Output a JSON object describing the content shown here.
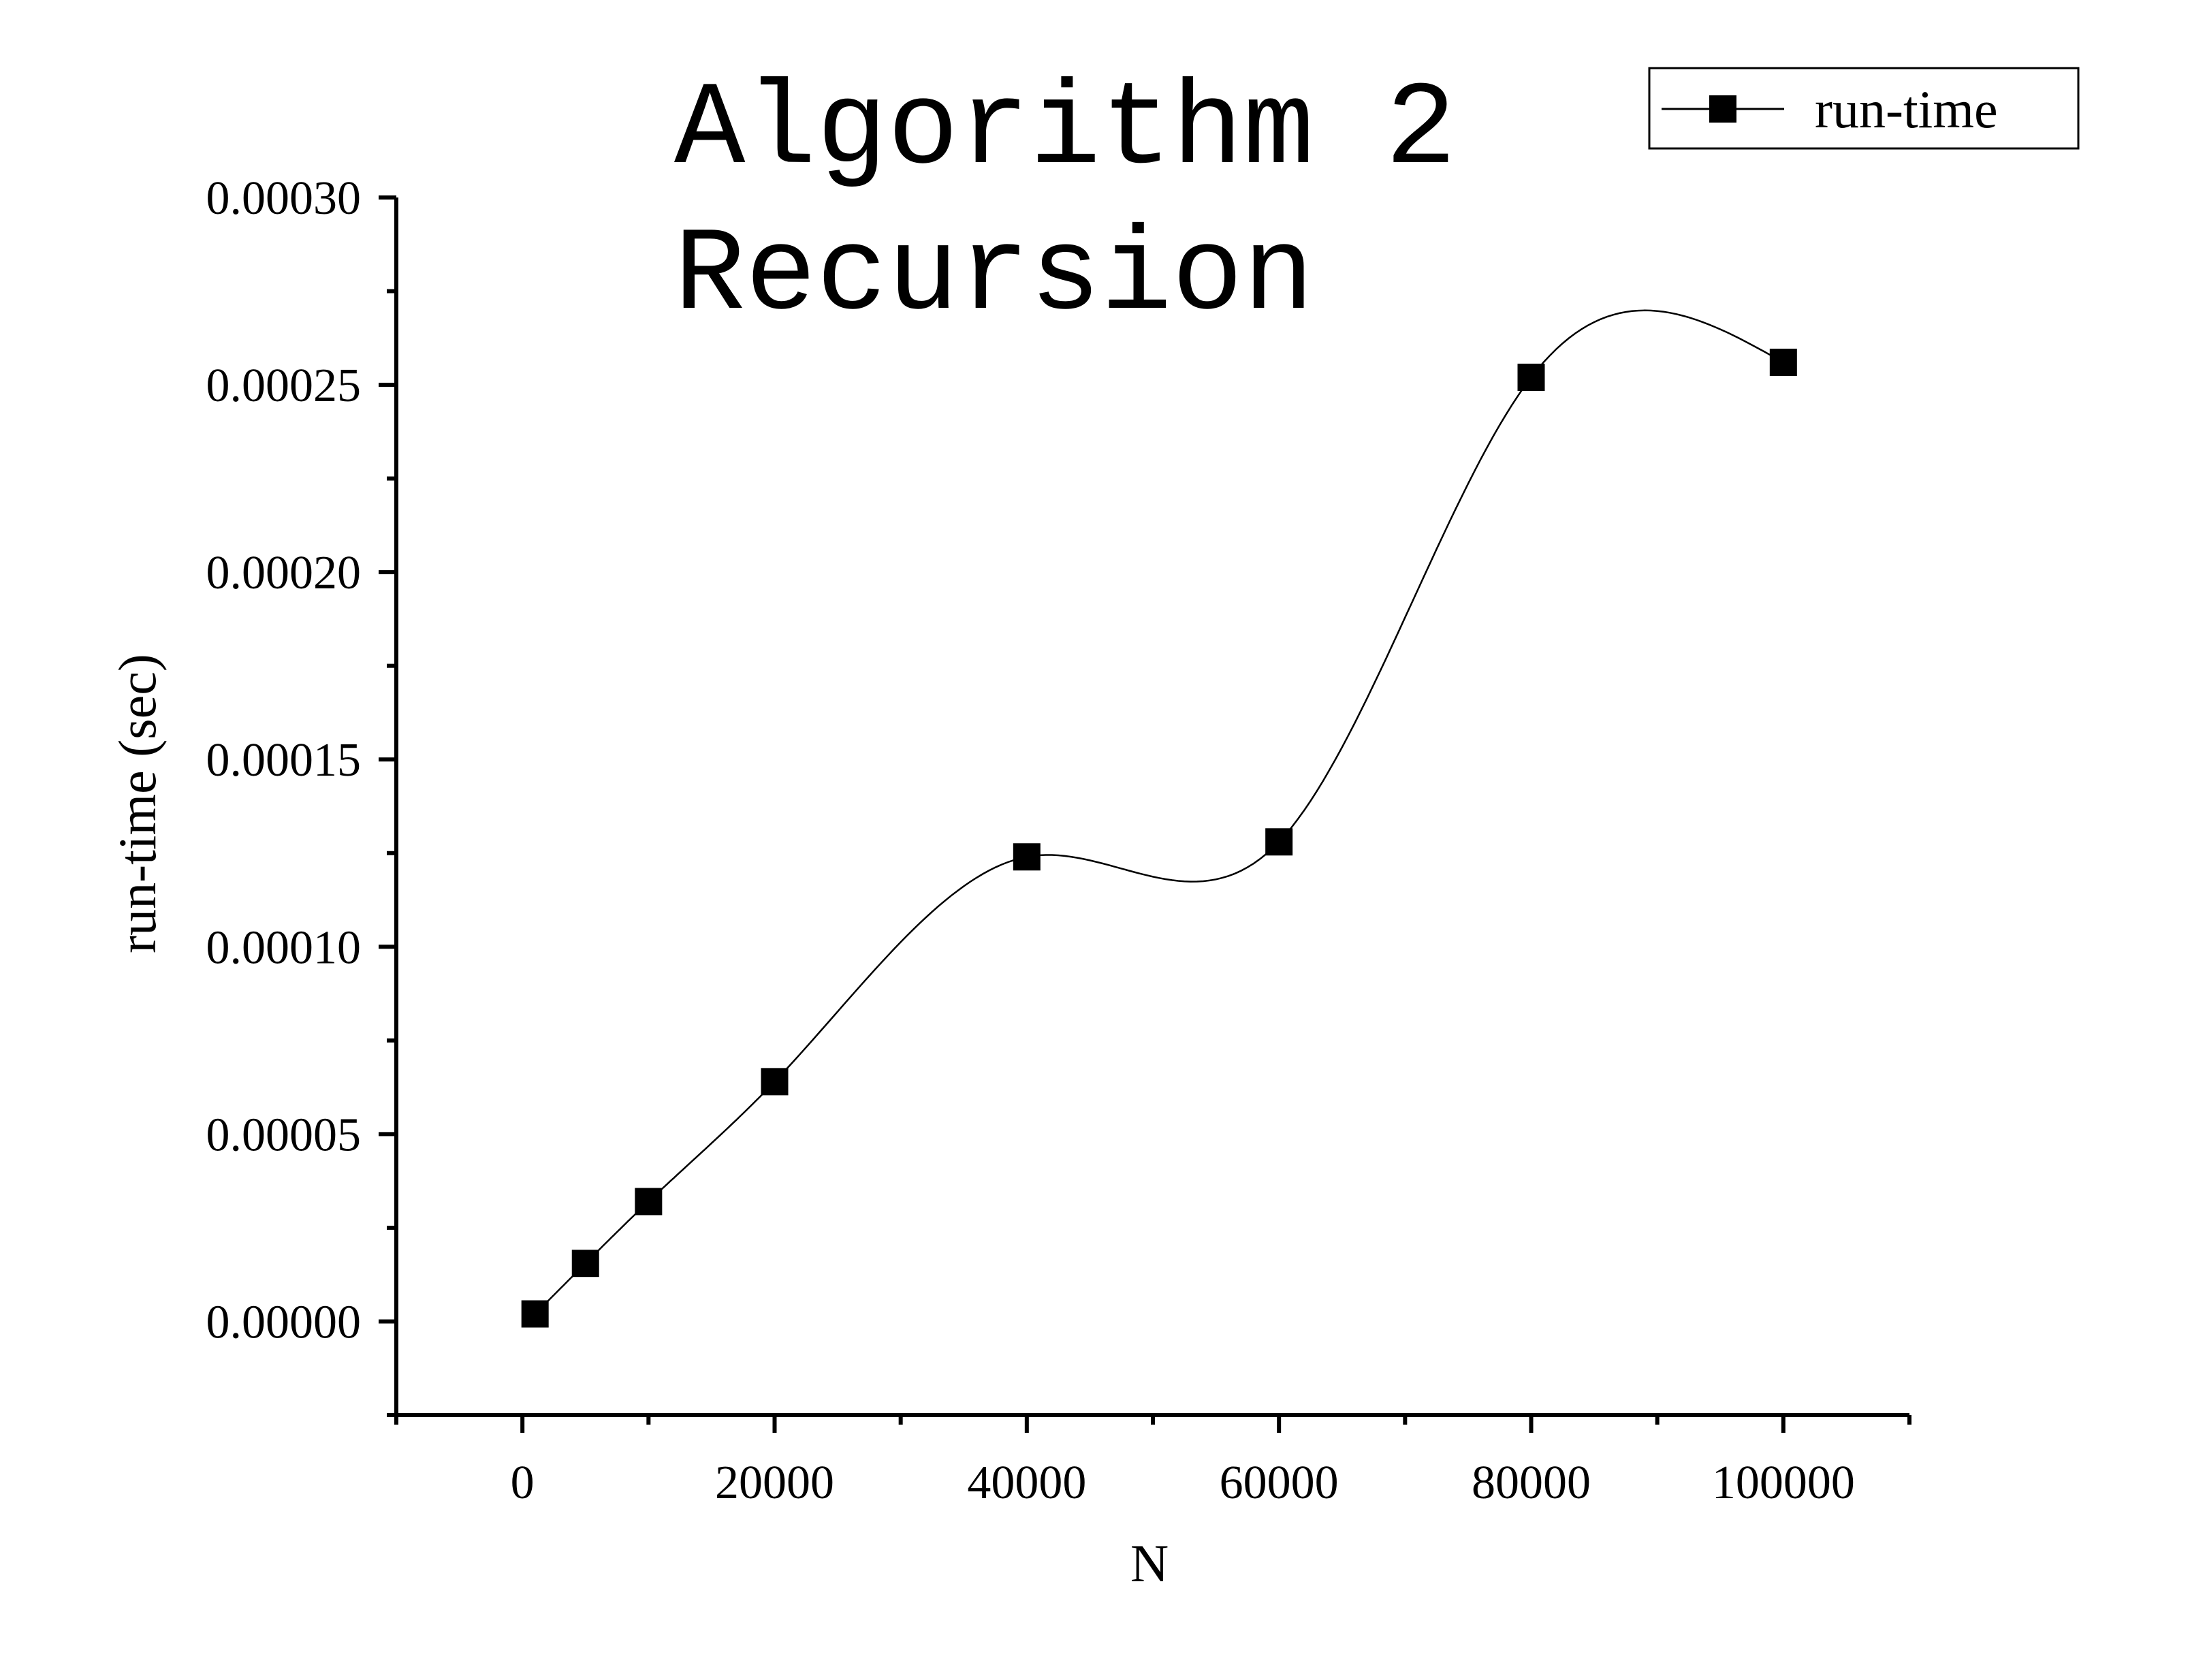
{
  "chart_data": {
    "type": "line",
    "title_lines": [
      "Algorithm 2",
      "Recursion"
    ],
    "xlabel": "N",
    "ylabel": "run-time (sec)",
    "xlim": [
      -10000,
      110000
    ],
    "ylim": [
      -2.5e-05,
      0.0003
    ],
    "x_ticks": [
      0,
      20000,
      40000,
      60000,
      80000,
      100000
    ],
    "x_tick_labels": [
      "0",
      "20000",
      "40000",
      "60000",
      "80000",
      "100000"
    ],
    "y_ticks": [
      0,
      5e-05,
      0.0001,
      0.00015,
      0.0002,
      0.00025,
      0.0003
    ],
    "y_tick_labels": [
      "0.00000",
      "0.00005",
      "0.00010",
      "0.00015",
      "0.00020",
      "0.00025",
      "0.00030"
    ],
    "legend_position": "top-right",
    "grid": false,
    "line_style": "smooth spline",
    "marker": "filled square",
    "series": [
      {
        "name": "run-time",
        "color": "#000000",
        "x": [
          1000,
          5000,
          10000,
          20000,
          40000,
          60000,
          80000,
          100000
        ],
        "y": [
          2e-06,
          1.55e-05,
          3.2e-05,
          6.4e-05,
          0.000124,
          0.000128,
          0.000252,
          0.000256
        ]
      }
    ]
  }
}
